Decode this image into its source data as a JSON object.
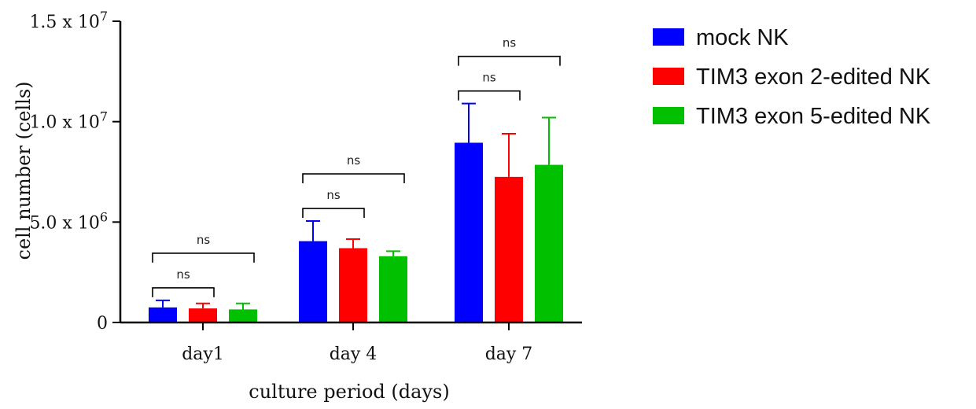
{
  "chart_data": {
    "type": "bar",
    "categories": [
      "day1",
      "day 4",
      "day 7"
    ],
    "series": [
      {
        "name": "mock NK",
        "color": "#0000ff",
        "values": [
          750000,
          4050000,
          8950000
        ],
        "errors": [
          350000,
          1000000,
          1950000
        ]
      },
      {
        "name": "TIM3 exon 2-edited NK",
        "color": "#ff0000",
        "values": [
          700000,
          3700000,
          7250000
        ],
        "errors": [
          250000,
          450000,
          2150000
        ]
      },
      {
        "name": "TIM3 exon 5-edited NK",
        "color": "#00c000",
        "values": [
          650000,
          3300000,
          7850000
        ],
        "errors": [
          300000,
          250000,
          2350000
        ]
      }
    ],
    "xlabel": "culture period (days)",
    "ylabel": "cell number (cells)",
    "ylim": [
      0,
      15000000
    ],
    "yticks": [
      {
        "value": 0,
        "mantissa": "0",
        "exponent": ""
      },
      {
        "value": 5000000,
        "mantissa": "5.0 x 10",
        "exponent": "6"
      },
      {
        "value": 10000000,
        "mantissa": "1.0 x 10",
        "exponent": "7"
      },
      {
        "value": 15000000,
        "mantissa": "1.5 x 10",
        "exponent": "7"
      }
    ],
    "significance": [
      {
        "category": 0,
        "from": 0,
        "to": 1,
        "label": "ns"
      },
      {
        "category": 0,
        "from": 0,
        "to": 2,
        "label": "ns"
      },
      {
        "category": 1,
        "from": 0,
        "to": 1,
        "label": "ns"
      },
      {
        "category": 1,
        "from": 0,
        "to": 2,
        "label": "ns"
      },
      {
        "category": 2,
        "from": 0,
        "to": 1,
        "label": "ns"
      },
      {
        "category": 2,
        "from": 0,
        "to": 2,
        "label": "ns"
      }
    ],
    "legend_position": "top-right",
    "grid": false
  }
}
